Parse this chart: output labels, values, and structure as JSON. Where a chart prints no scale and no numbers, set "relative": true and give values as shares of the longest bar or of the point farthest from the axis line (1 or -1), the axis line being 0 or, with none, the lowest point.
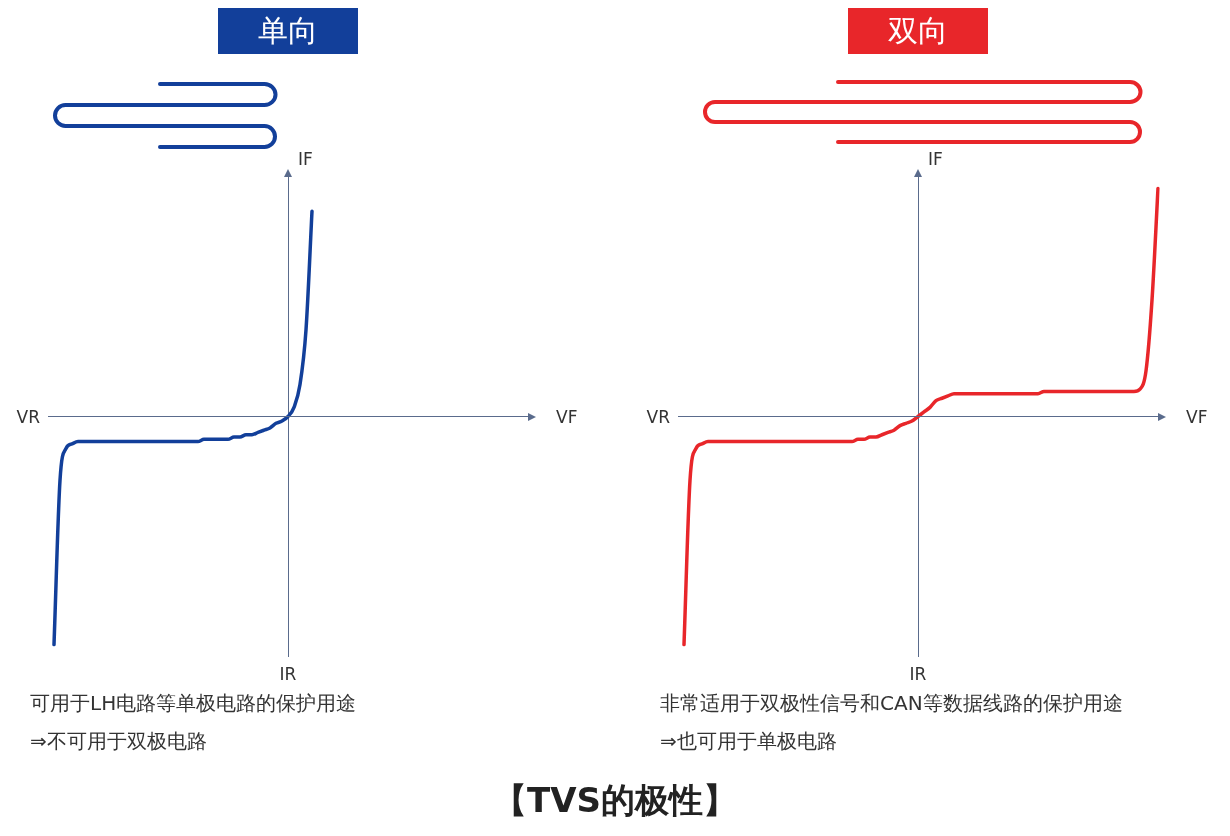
{
  "chart_data": [
    {
      "type": "line",
      "title": "单向",
      "xlabel": "VF",
      "ylabel": "IF",
      "relative": true,
      "ref_lines": [
        {
          "axis": "y",
          "value": 0,
          "color": "#5a6b8c"
        }
      ],
      "annotations": [
        "VR",
        "IR",
        "可用于LH电路等单极电路的保护用途",
        "⇒不可用于双极电路"
      ],
      "categories": [
        null,
        null,
        null,
        null,
        null,
        null,
        null,
        null,
        null,
        null,
        null,
        null,
        null,
        null,
        null,
        null,
        null,
        null,
        null,
        null,
        null,
        null,
        null,
        null,
        null,
        null,
        null,
        null,
        null,
        null,
        null,
        null,
        null,
        null,
        null,
        null,
        null,
        null,
        null,
        null,
        null,
        null,
        null,
        null,
        null,
        null,
        null,
        null,
        null,
        null,
        null,
        null,
        null,
        null,
        null,
        null,
        null,
        null,
        null,
        null,
        null,
        null,
        null,
        null,
        null,
        null,
        null,
        null,
        null,
        null,
        null,
        null,
        null,
        null,
        null,
        null,
        null,
        null,
        null,
        null,
        null
      ],
      "series": [
        {
          "color": "#123f9a",
          "values": [
            null,
            -1.0,
            -0.28,
            -0.14,
            -0.12,
            -0.11,
            -0.11,
            -0.11,
            -0.11,
            -0.11,
            -0.11,
            -0.11,
            -0.11,
            -0.11,
            -0.11,
            -0.11,
            -0.11,
            -0.11,
            -0.11,
            -0.11,
            -0.11,
            -0.11,
            -0.11,
            -0.11,
            -0.11,
            -0.11,
            -0.1,
            -0.1,
            -0.1,
            -0.1,
            -0.1,
            -0.09,
            -0.09,
            -0.08,
            -0.08,
            -0.07,
            -0.06,
            -0.05,
            -0.03,
            -0.02,
            0,
            0.04,
            0.14,
            0.38,
            0.9,
            null,
            null,
            null,
            null,
            null,
            null,
            null,
            null,
            null,
            null,
            null,
            null,
            null,
            null,
            null,
            null,
            null,
            null,
            null,
            null,
            null,
            null,
            null,
            null,
            null,
            null,
            null,
            null,
            null,
            null,
            null,
            null,
            null,
            null,
            null,
            null
          ]
        }
      ]
    },
    {
      "type": "line",
      "title": "双向",
      "xlabel": "VF",
      "ylabel": "IF",
      "relative": true,
      "ref_lines": [
        {
          "axis": "y",
          "value": 0,
          "color": "#5a6b8c"
        }
      ],
      "annotations": [
        "VR",
        "IR",
        "非常适用于双极性信号和CAN等数据线路的保护用途",
        "⇒也可用于单极电路"
      ],
      "categories": [
        null,
        null,
        null,
        null,
        null,
        null,
        null,
        null,
        null,
        null,
        null,
        null,
        null,
        null,
        null,
        null,
        null,
        null,
        null,
        null,
        null,
        null,
        null,
        null,
        null,
        null,
        null,
        null,
        null,
        null,
        null,
        null,
        null,
        null,
        null,
        null,
        null,
        null,
        null,
        null,
        null,
        null,
        null,
        null,
        null,
        null,
        null,
        null,
        null,
        null,
        null,
        null,
        null,
        null,
        null,
        null,
        null,
        null,
        null,
        null,
        null,
        null,
        null,
        null,
        null,
        null,
        null,
        null,
        null,
        null,
        null,
        null,
        null,
        null,
        null,
        null,
        null,
        null,
        null,
        null,
        null
      ],
      "series": [
        {
          "color": "#e8262a",
          "values": [
            null,
            -1.0,
            -0.28,
            -0.14,
            -0.12,
            -0.11,
            -0.11,
            -0.11,
            -0.11,
            -0.11,
            -0.11,
            -0.11,
            -0.11,
            -0.11,
            -0.11,
            -0.11,
            -0.11,
            -0.11,
            -0.11,
            -0.11,
            -0.11,
            -0.11,
            -0.11,
            -0.11,
            -0.11,
            -0.11,
            -0.11,
            -0.11,
            -0.11,
            -0.11,
            -0.1,
            -0.1,
            -0.09,
            -0.09,
            -0.08,
            -0.07,
            -0.06,
            -0.04,
            -0.03,
            -0.02,
            0,
            0.02,
            0.04,
            0.07,
            0.08,
            0.09,
            0.1,
            0.1,
            0.1,
            0.1,
            0.1,
            0.1,
            0.1,
            0.1,
            0.1,
            0.1,
            0.1,
            0.1,
            0.1,
            0.1,
            0.1,
            0.11,
            0.11,
            0.11,
            0.11,
            0.11,
            0.11,
            0.11,
            0.11,
            0.11,
            0.11,
            0.11,
            0.11,
            0.11,
            0.11,
            0.11,
            0.11,
            0.12,
            0.2,
            0.51,
            1.0
          ]
        }
      ]
    },
    {
      "type": "other",
      "title": "【TVS的极性】"
    }
  ]
}
